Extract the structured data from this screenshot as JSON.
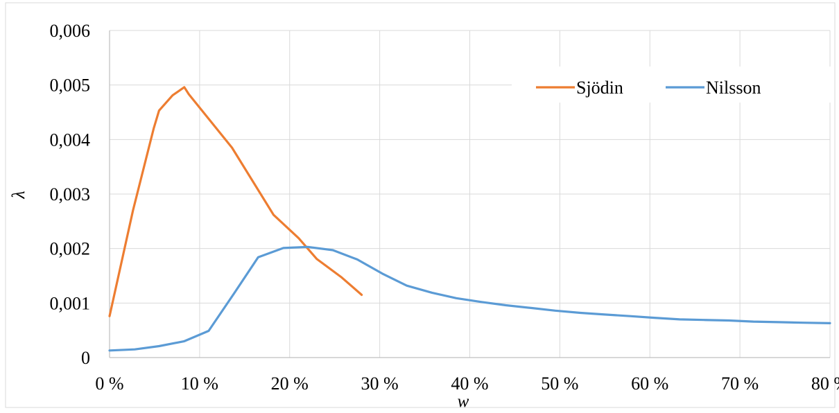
{
  "chart_data": {
    "type": "line",
    "title": "",
    "xlabel": "w",
    "ylabel": "λ",
    "xlim": [
      0,
      80
    ],
    "ylim": [
      0,
      0.006
    ],
    "x_ticks": [
      "0 %",
      "10 %",
      "20 %",
      "30 %",
      "40 %",
      "50 %",
      "60 %",
      "70 %",
      "80 %"
    ],
    "x_tick_values": [
      0,
      10,
      20,
      30,
      40,
      50,
      60,
      70,
      80
    ],
    "y_ticks": [
      "0",
      "0,001",
      "0,002",
      "0,003",
      "0,004",
      "0,005",
      "0,006"
    ],
    "y_tick_values": [
      0,
      0.001,
      0.002,
      0.003,
      0.004,
      0.005,
      0.006
    ],
    "grid": true,
    "legend_position": "top-right",
    "series": [
      {
        "name": "Sjödin",
        "color": "#ED7D31",
        "points": [
          [
            0.0,
            0.00076
          ],
          [
            2.6,
            0.0027
          ],
          [
            4.9,
            0.0042
          ],
          [
            5.5,
            0.00453
          ],
          [
            7.0,
            0.00481
          ],
          [
            8.3,
            0.00496
          ],
          [
            8.8,
            0.00483
          ],
          [
            13.6,
            0.00385
          ],
          [
            18.2,
            0.00262
          ],
          [
            21.0,
            0.00219
          ],
          [
            23.0,
            0.00181
          ],
          [
            25.7,
            0.00148
          ],
          [
            28.0,
            0.00115
          ]
        ]
      },
      {
        "name": "Nilsson",
        "color": "#5B9BD5",
        "points": [
          [
            0.0,
            0.00013
          ],
          [
            2.8,
            0.00015
          ],
          [
            5.5,
            0.00021
          ],
          [
            8.3,
            0.0003
          ],
          [
            11.0,
            0.00049
          ],
          [
            13.8,
            0.00117
          ],
          [
            16.5,
            0.00184
          ],
          [
            19.3,
            0.00201
          ],
          [
            22.0,
            0.00203
          ],
          [
            24.8,
            0.00197
          ],
          [
            27.5,
            0.0018
          ],
          [
            30.3,
            0.00154
          ],
          [
            33.0,
            0.00132
          ],
          [
            35.8,
            0.00119
          ],
          [
            38.5,
            0.00109
          ],
          [
            41.3,
            0.00102
          ],
          [
            44.0,
            0.00096
          ],
          [
            46.8,
            0.00091
          ],
          [
            49.5,
            0.00086
          ],
          [
            52.3,
            0.00082
          ],
          [
            55.0,
            0.00079
          ],
          [
            57.8,
            0.00076
          ],
          [
            60.5,
            0.00073
          ],
          [
            63.3,
            0.0007
          ],
          [
            66.0,
            0.00069
          ],
          [
            68.8,
            0.00068
          ],
          [
            71.5,
            0.00066
          ],
          [
            74.3,
            0.00065
          ],
          [
            77.0,
            0.00064
          ],
          [
            80.0,
            0.00063
          ]
        ]
      }
    ]
  }
}
